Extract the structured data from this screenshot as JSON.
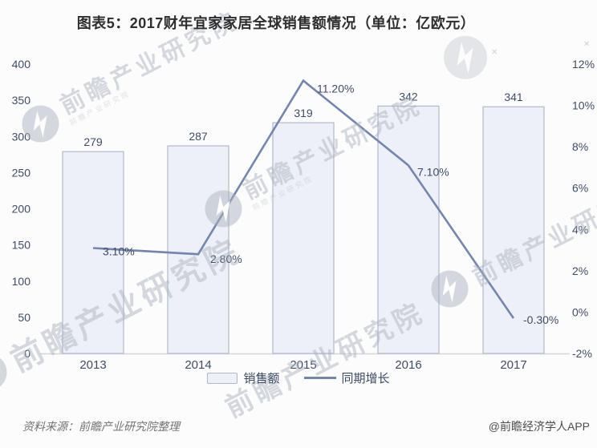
{
  "title": "图表5：2017财年宜家家居全球销售额情况（单位：亿欧元）",
  "chart_data": {
    "type": "bar",
    "subtype": "combo-bar-line",
    "categories": [
      "2013",
      "2014",
      "2015",
      "2016",
      "2017"
    ],
    "series": [
      {
        "name": "销售额",
        "type": "bar",
        "axis": "left",
        "values": [
          279,
          287,
          319,
          342,
          341
        ],
        "data_labels": [
          "279",
          "287",
          "319",
          "342",
          "341"
        ]
      },
      {
        "name": "同期增长",
        "type": "line",
        "axis": "right",
        "values": [
          3.1,
          2.8,
          11.2,
          7.1,
          -0.3
        ],
        "data_labels": [
          "3.10%",
          "2.80%",
          "11.20%",
          "7.10%",
          "-0.30%"
        ]
      }
    ],
    "left_axis": {
      "min": 0,
      "max": 400,
      "tick_labels": [
        "0",
        "50",
        "100",
        "150",
        "200",
        "250",
        "300",
        "350",
        "400"
      ]
    },
    "right_axis": {
      "min": -2,
      "max": 12,
      "tick_labels": [
        "-2%",
        "0%",
        "2%",
        "4%",
        "6%",
        "8%",
        "10%",
        "12%"
      ]
    },
    "legend_position": "bottom",
    "grid": false
  },
  "colors": {
    "bar_fill": "#edf0f6",
    "bar_stroke": "#aeb9cd",
    "line": "#7286b0",
    "axis_text": "#3f4c68",
    "title_text": "#2e2e2e",
    "source_text": "#737373"
  },
  "watermark": {
    "text": "前瞻产业研究院",
    "cross_glyph": "✕"
  },
  "footer": {
    "source": "资料来源：前瞻产业研究院整理",
    "credit": "@前瞻经济学人APP"
  }
}
